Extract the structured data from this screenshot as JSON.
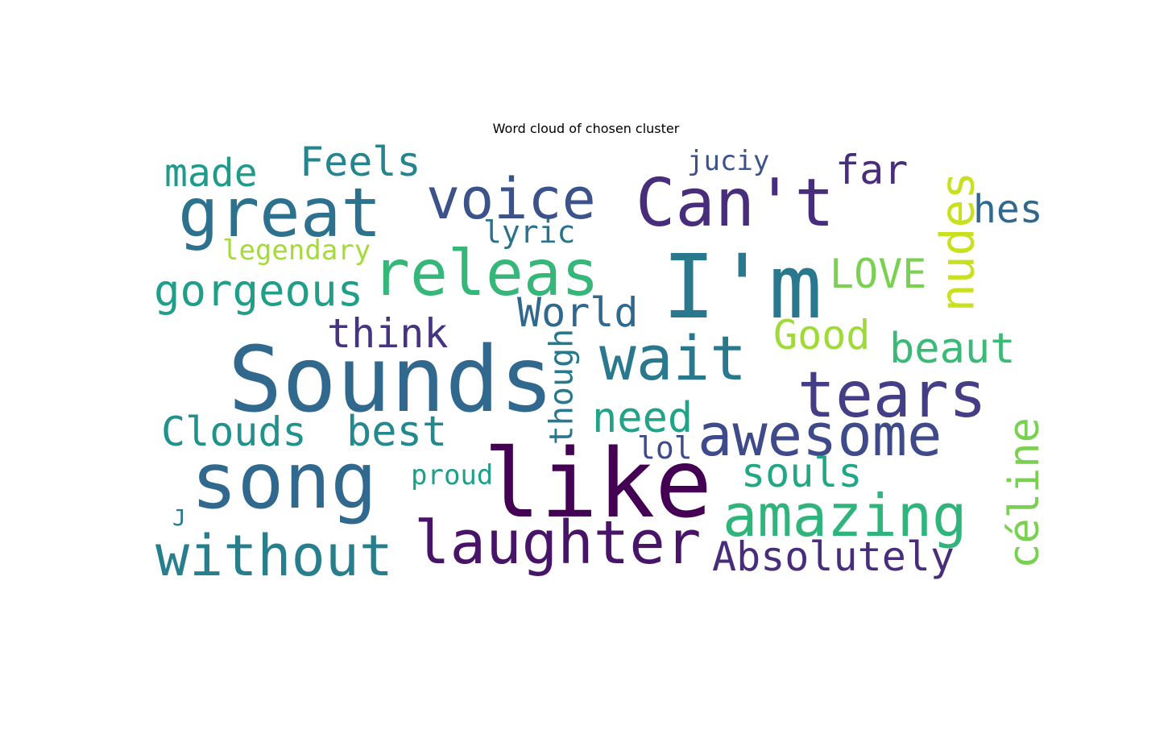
{
  "title": "Word cloud of chosen cluster",
  "words": [
    {
      "text": "Sounds",
      "color": "#31688e"
    },
    {
      "text": "like",
      "color": "#440154"
    },
    {
      "text": "song",
      "color": "#31688e"
    },
    {
      "text": "I'm",
      "color": "#2a788e"
    },
    {
      "text": "Can't",
      "color": "#472d7b"
    },
    {
      "text": "releas",
      "color": "#35b779"
    },
    {
      "text": "great",
      "color": "#2c728e"
    },
    {
      "text": "voice",
      "color": "#3b528b"
    },
    {
      "text": "wait",
      "color": "#2a788e"
    },
    {
      "text": "tears",
      "color": "#433e85"
    },
    {
      "text": "awesome",
      "color": "#3e4a89"
    },
    {
      "text": "amazing",
      "color": "#2fb47c"
    },
    {
      "text": "without",
      "color": "#277f8e"
    },
    {
      "text": "laughter",
      "color": "#481467"
    },
    {
      "text": "nudes",
      "color": "#c8e020"
    },
    {
      "text": "Feels",
      "color": "#25848e"
    },
    {
      "text": "made",
      "color": "#1e9b8a"
    },
    {
      "text": "juciy",
      "color": "#3b528b"
    },
    {
      "text": "far",
      "color": "#472d7b"
    },
    {
      "text": "hes",
      "color": "#31688e"
    },
    {
      "text": "lyric",
      "color": "#2c728e"
    },
    {
      "text": "legendary",
      "color": "#a5db36"
    },
    {
      "text": "LOVE",
      "color": "#7ad151"
    },
    {
      "text": "gorgeous",
      "color": "#1f9e89"
    },
    {
      "text": "World",
      "color": "#31688e"
    },
    {
      "text": "think",
      "color": "#463480"
    },
    {
      "text": "Good",
      "color": "#a0da39"
    },
    {
      "text": "beaut",
      "color": "#3aba76"
    },
    {
      "text": "though",
      "color": "#2a788e"
    },
    {
      "text": "need",
      "color": "#20a386"
    },
    {
      "text": "Clouds",
      "color": "#21918c"
    },
    {
      "text": "best",
      "color": "#23898e"
    },
    {
      "text": "lol",
      "color": "#3e4a89"
    },
    {
      "text": "souls",
      "color": "#22a785"
    },
    {
      "text": "céline",
      "color": "#7ad151"
    },
    {
      "text": "proud",
      "color": "#1f9e89"
    },
    {
      "text": "J",
      "color": "#2a788e"
    },
    {
      "text": "Absolutely",
      "color": "#472d7b"
    }
  ]
}
